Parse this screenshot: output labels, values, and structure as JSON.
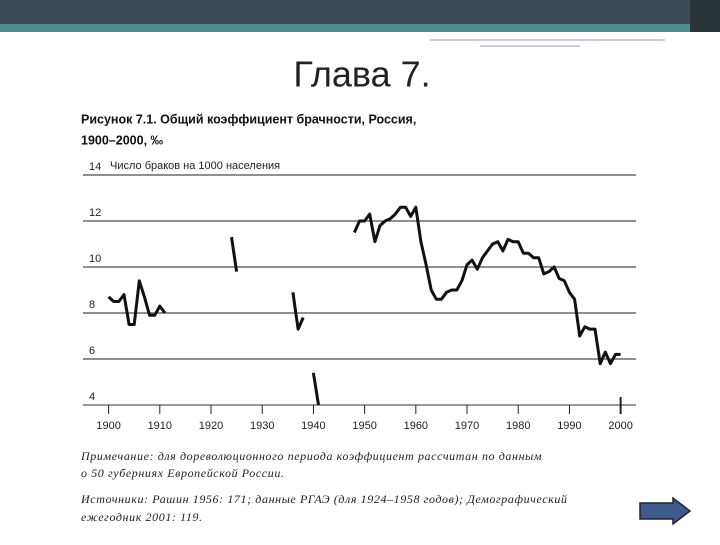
{
  "slide": {
    "title": "Глава 7."
  },
  "chart_data": {
    "type": "line",
    "title": [
      "Рисунок 7.1. Общий коэффициент брачности, Россия,",
      "1900–2000, ‰"
    ],
    "ylabel": "Число браков на 1000 населения",
    "x": [
      1900,
      1901,
      1902,
      1903,
      1904,
      1905,
      1906,
      1907,
      1908,
      1909,
      1910,
      1911,
      1912,
      1913,
      1914,
      1915,
      1916,
      1917,
      1918,
      1919,
      1920,
      1921,
      1922,
      1923,
      1924,
      1925,
      1926,
      1927,
      1928,
      1929,
      1930,
      1931,
      1932,
      1933,
      1934,
      1935,
      1936,
      1937,
      1938,
      1939,
      1940,
      1941,
      1942,
      1943,
      1944,
      1945,
      1946,
      1947,
      1948,
      1949,
      1950,
      1951,
      1952,
      1953,
      1954,
      1955,
      1956,
      1957,
      1958,
      1959,
      1960,
      1961,
      1962,
      1963,
      1964,
      1965,
      1966,
      1967,
      1968,
      1969,
      1970,
      1971,
      1972,
      1973,
      1974,
      1975,
      1976,
      1977,
      1978,
      1979,
      1980,
      1981,
      1982,
      1983,
      1984,
      1985,
      1986,
      1987,
      1988,
      1989,
      1990,
      1991,
      1992,
      1993,
      1994,
      1995,
      1996,
      1997,
      1998,
      1999,
      2000
    ],
    "series": [
      {
        "color": "#111111",
        "values": [
          8.7,
          8.5,
          8.5,
          8.8,
          7.5,
          7.5,
          9.4,
          8.7,
          7.9,
          7.9,
          8.3,
          8.0,
          null,
          null,
          null,
          null,
          null,
          null,
          null,
          null,
          null,
          null,
          null,
          null,
          11.3,
          9.8,
          null,
          null,
          null,
          null,
          null,
          null,
          null,
          null,
          null,
          null,
          8.9,
          7.3,
          7.8,
          null,
          5.4,
          4.0,
          null,
          null,
          null,
          null,
          null,
          null,
          11.5,
          12.0,
          12.0,
          12.3,
          11.1,
          11.8,
          12.0,
          12.1,
          12.3,
          12.6,
          12.6,
          12.2,
          12.6,
          11.1,
          10.1,
          9.0,
          8.6,
          8.6,
          8.9,
          9.0,
          9.0,
          9.4,
          10.1,
          10.3,
          9.9,
          10.4,
          10.7,
          11.0,
          11.1,
          10.7,
          11.2,
          11.1,
          11.1,
          10.6,
          10.6,
          10.4,
          10.4,
          9.7,
          9.8,
          10.0,
          9.5,
          9.4,
          8.9,
          8.6,
          7.0,
          7.4,
          7.3,
          7.3,
          5.8,
          6.3,
          5.8,
          6.2,
          6.2
        ]
      }
    ],
    "xlim": [
      1895,
      2003
    ],
    "xticks": [
      1900,
      1910,
      1920,
      1930,
      1940,
      1950,
      1960,
      1970,
      1980,
      1990,
      2000
    ],
    "ylim": [
      4,
      14
    ],
    "yticks": [
      4,
      6,
      8,
      10,
      12,
      14
    ],
    "grid": true
  },
  "notes": [
    [
      "Примечание: для дореволюционного периода коэффициент рассчитан по данным",
      "о 50 губерниях Европейской России."
    ],
    [
      "Источники: Рашин 1956: 171; данные РГАЭ (для 1924–1958 годов); Демографический",
      "ежегодник 2001: 119."
    ]
  ]
}
